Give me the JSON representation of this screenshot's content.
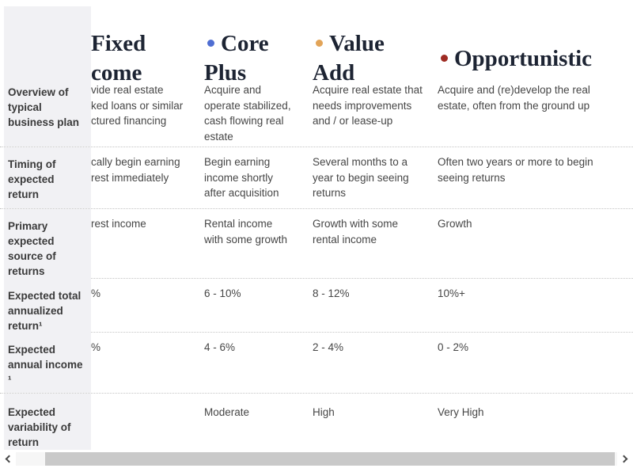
{
  "header": {
    "columns": [
      {
        "id": "fixed-income",
        "label": "Fixed\ncome"
      },
      {
        "id": "core-plus",
        "label": "Core\nPlus",
        "dot_style": "background:#4f6ed2"
      },
      {
        "id": "value-add",
        "label": "Value\nAdd",
        "dot_style": "background:#e2a458"
      },
      {
        "id": "opportunistic",
        "label": "Opportunistic",
        "dot_style": "background:#9e2b23"
      }
    ]
  },
  "rows": [
    {
      "label": "Overview of\ntypical\nbusiness plan",
      "cells": [
        "vide real estate\nked loans or similar\nctured financing",
        "Acquire and\noperate stabilized,\ncash flowing real\nestate",
        "Acquire real estate that\nneeds improvements\nand / or lease-up",
        "Acquire and (re)develop the real\nestate, often from the ground up"
      ]
    },
    {
      "label": "Timing of\nexpected\nreturn",
      "cells": [
        "cally begin earning\nrest immediately",
        "Begin earning\nincome shortly\nafter acquisition",
        "Several months to a\nyear to begin seeing\nreturns",
        "Often two years or more to begin\nseeing returns"
      ]
    },
    {
      "label": "Primary\nexpected\nsource of\nreturns",
      "cells": [
        "rest income",
        "Rental income\nwith some growth",
        "Growth with some\nrental income",
        "Growth"
      ]
    },
    {
      "label": "Expected total\nannualized\nreturn¹",
      "cells": [
        "%",
        "6 - 10%",
        "8 - 12%",
        "10%+"
      ]
    },
    {
      "label": "Expected\nannual income\n¹",
      "cells": [
        "%",
        "4 - 6%",
        "2 - 4%",
        "0 - 2%"
      ]
    },
    {
      "label": "Expected\nvariability of\nreturn",
      "cells": [
        "",
        "Moderate",
        "High",
        "Very High"
      ]
    }
  ],
  "scrollbar": {
    "left_icon": "chevron-left",
    "right_icon": "chevron-right"
  },
  "colors": {
    "core_plus_dot": "#4f6ed2",
    "value_add_dot": "#e2a458",
    "opportunistic_dot": "#9e2b23",
    "sticky_column_bg": "#f1f1f4",
    "header_text": "#1d2433",
    "body_text": "#464646",
    "scrollbar_thumb": "#c9c9c9"
  }
}
